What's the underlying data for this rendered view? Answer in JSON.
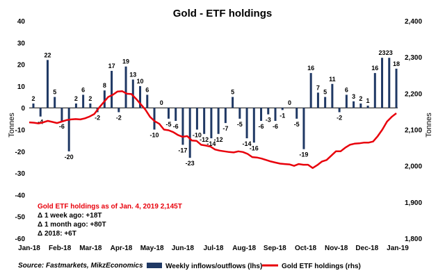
{
  "chart_data": {
    "type": "bar",
    "title": "Gold - ETF holdings",
    "ylabel_left": "Tonnes",
    "ylabel_right": "Tonnes",
    "ylim_left": [
      -60,
      40
    ],
    "ylim_right": [
      1800,
      2400
    ],
    "yticks_left": [
      "40",
      "30",
      "20",
      "10",
      "0",
      "-10",
      "-20",
      "-30",
      "-40",
      "-50",
      "-60"
    ],
    "yticks_right": [
      "2,400",
      "2,300",
      "2,200",
      "2,100",
      "2,000",
      "1,900",
      "1,800"
    ],
    "x_tick_labels": [
      "Jan-18",
      "Feb-18",
      "Mar-18",
      "Apr-18",
      "May-18",
      "Jun-18",
      "Jul-18",
      "Aug-18",
      "Sep-18",
      "Oct-18",
      "Nov-18",
      "Dec-18",
      "Jan-19"
    ],
    "grid": false,
    "legend_position": "bottom",
    "series": [
      {
        "name": "Weekly inflows/outflows (lhs)",
        "type": "bar",
        "axis": "left",
        "color": "#1f3864",
        "values": [
          2,
          -4,
          22,
          5,
          -6,
          -20,
          2,
          6,
          2,
          -2,
          8,
          17,
          -2,
          19,
          13,
          10,
          6,
          -10,
          0,
          -5,
          -6,
          -17,
          -23,
          -10,
          -12,
          -14,
          -12,
          -7,
          5,
          -5,
          -14,
          -16,
          -6,
          -3,
          -6,
          -1,
          0,
          -5,
          -19,
          16,
          7,
          5,
          11,
          -2,
          6,
          3,
          2,
          1,
          16,
          23,
          23,
          18
        ]
      },
      {
        "name": "Gold ETF holdings (rhs)",
        "type": "line",
        "axis": "right",
        "color": "#e8000b",
        "values": [
          2120,
          2119,
          2117,
          2120,
          2124,
          2121,
          2118,
          2122,
          2126,
          2128,
          2129,
          2128,
          2131,
          2136,
          2143,
          2160,
          2175,
          2190,
          2196,
          2205,
          2206,
          2199,
          2198,
          2185,
          2170,
          2155,
          2135,
          2123,
          2116,
          2100,
          2098,
          2093,
          2085,
          2080,
          2082,
          2070,
          2069,
          2058,
          2056,
          2053,
          2045,
          2042,
          2040,
          2038,
          2037,
          2040,
          2038,
          2033,
          2024,
          2023,
          2020,
          2016,
          2012,
          2009,
          2006,
          2005,
          2004,
          2000,
          2005,
          2003,
          2003,
          1994,
          2002,
          2012,
          2016,
          2028,
          2040,
          2040,
          2050,
          2058,
          2061,
          2062,
          2064,
          2064,
          2067,
          2082,
          2100,
          2122,
          2135,
          2145
        ]
      }
    ],
    "annotations": {
      "holdings_note": "Gold ETF holdings as of Jan. 4, 2019 2,145T",
      "week_change": "Δ 1 week ago: +18T",
      "month_change": "Δ 1 month ago: +80T",
      "year_change": "Δ 2018: +6T",
      "source": "Source: Fastmarkets, MikzEconomics"
    }
  }
}
